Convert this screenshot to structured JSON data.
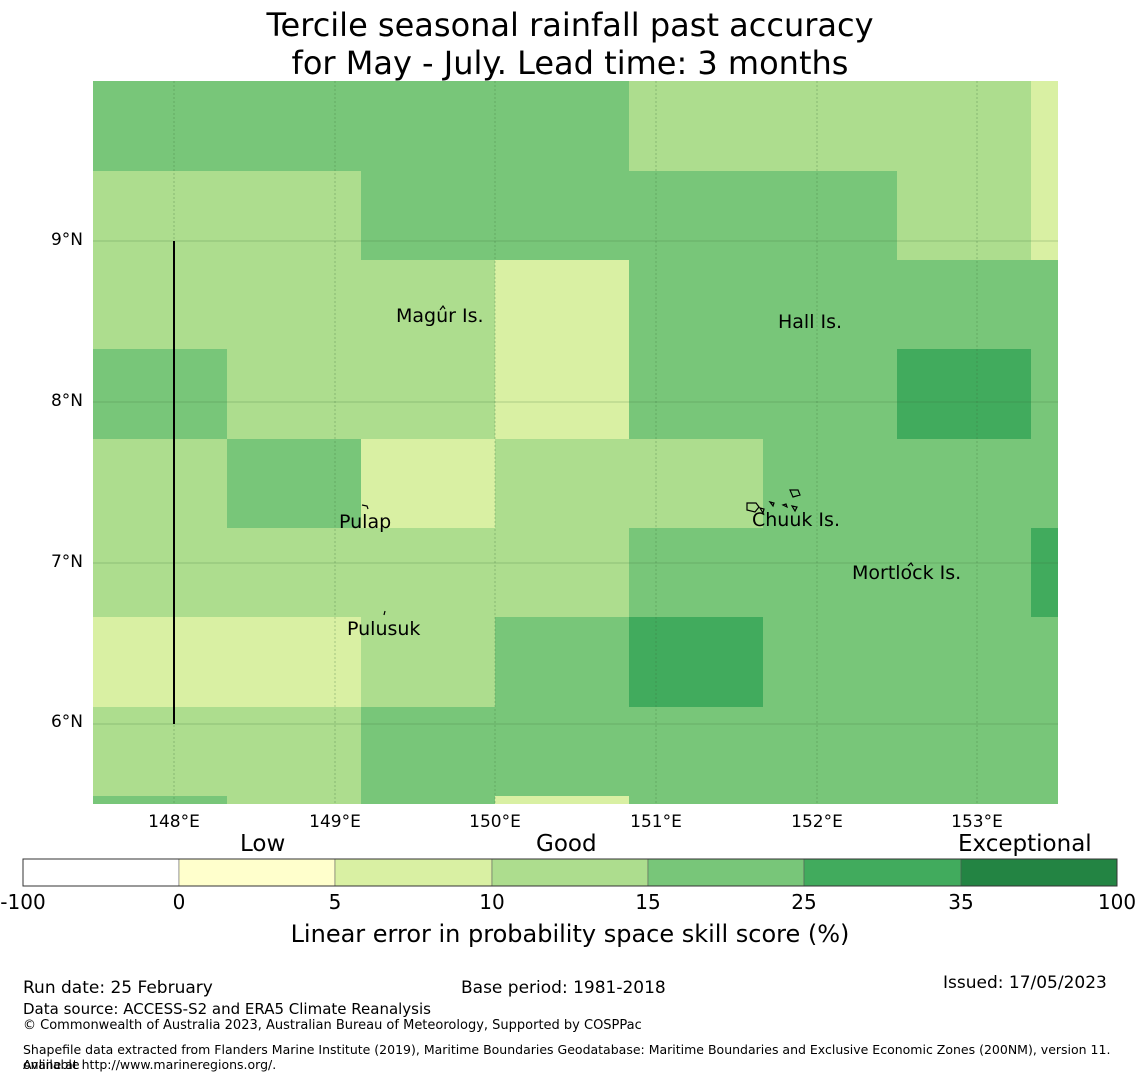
{
  "title": {
    "line1": "Tercile seasonal rainfall past accuracy",
    "line2": "for May - July. Lead time: 3 months"
  },
  "map": {
    "lat_labels": [
      "9°N",
      "8°N",
      "7°N",
      "6°N"
    ],
    "lon_labels": [
      "148°E",
      "149°E",
      "150°E",
      "151°E",
      "152°E",
      "153°E"
    ],
    "places": [
      {
        "name": "Magur Is."
      },
      {
        "name": "Hall Is."
      },
      {
        "name": "Pulap"
      },
      {
        "name": "Chuuk Is."
      },
      {
        "name": "Mortlock Is."
      },
      {
        "name": "Pulusuk"
      }
    ],
    "extent": {
      "lon_min": 147.5,
      "lon_max": 153.5,
      "lat_min": 5.5,
      "lat_max": 10.0
    },
    "skill_grid_note": "cell values are skill score class indices (1=0-5,2=5-10,3=10-15,4=15-25,5=25-35)"
  },
  "colorbar": {
    "categories": {
      "low": "Low",
      "good": "Good",
      "exceptional": "Exceptional"
    },
    "ticks": [
      "-100",
      "0",
      "5",
      "10",
      "15",
      "25",
      "35",
      "100"
    ],
    "colors": [
      "#ffffff",
      "#ffffcc",
      "#d9f0a3",
      "#addd8e",
      "#78c679",
      "#41ab5d",
      "#238443"
    ],
    "label": "Linear error in probability space skill score (%)"
  },
  "footer": {
    "run_date": "Run date: 25 February",
    "base_period": "Base period: 1981-2018",
    "issued": "Issued: 17/05/2023",
    "data_source": "Data source: ACCESS-S2 and ERA5 Climate Reanalysis",
    "copyright": "© Commonwealth of Australia 2023, Australian Bureau of Meteorology, Supported by COSPPac",
    "shapefile_line1": "Shapefile data extracted from Flanders Marine Institute (2019), Maritime Boundaries Geodatabase: Maritime Boundaries and Exclusive Economic Zones (200NM), version 11. Available",
    "shapefile_line2": "online at http://www.marineregions.org/."
  }
}
